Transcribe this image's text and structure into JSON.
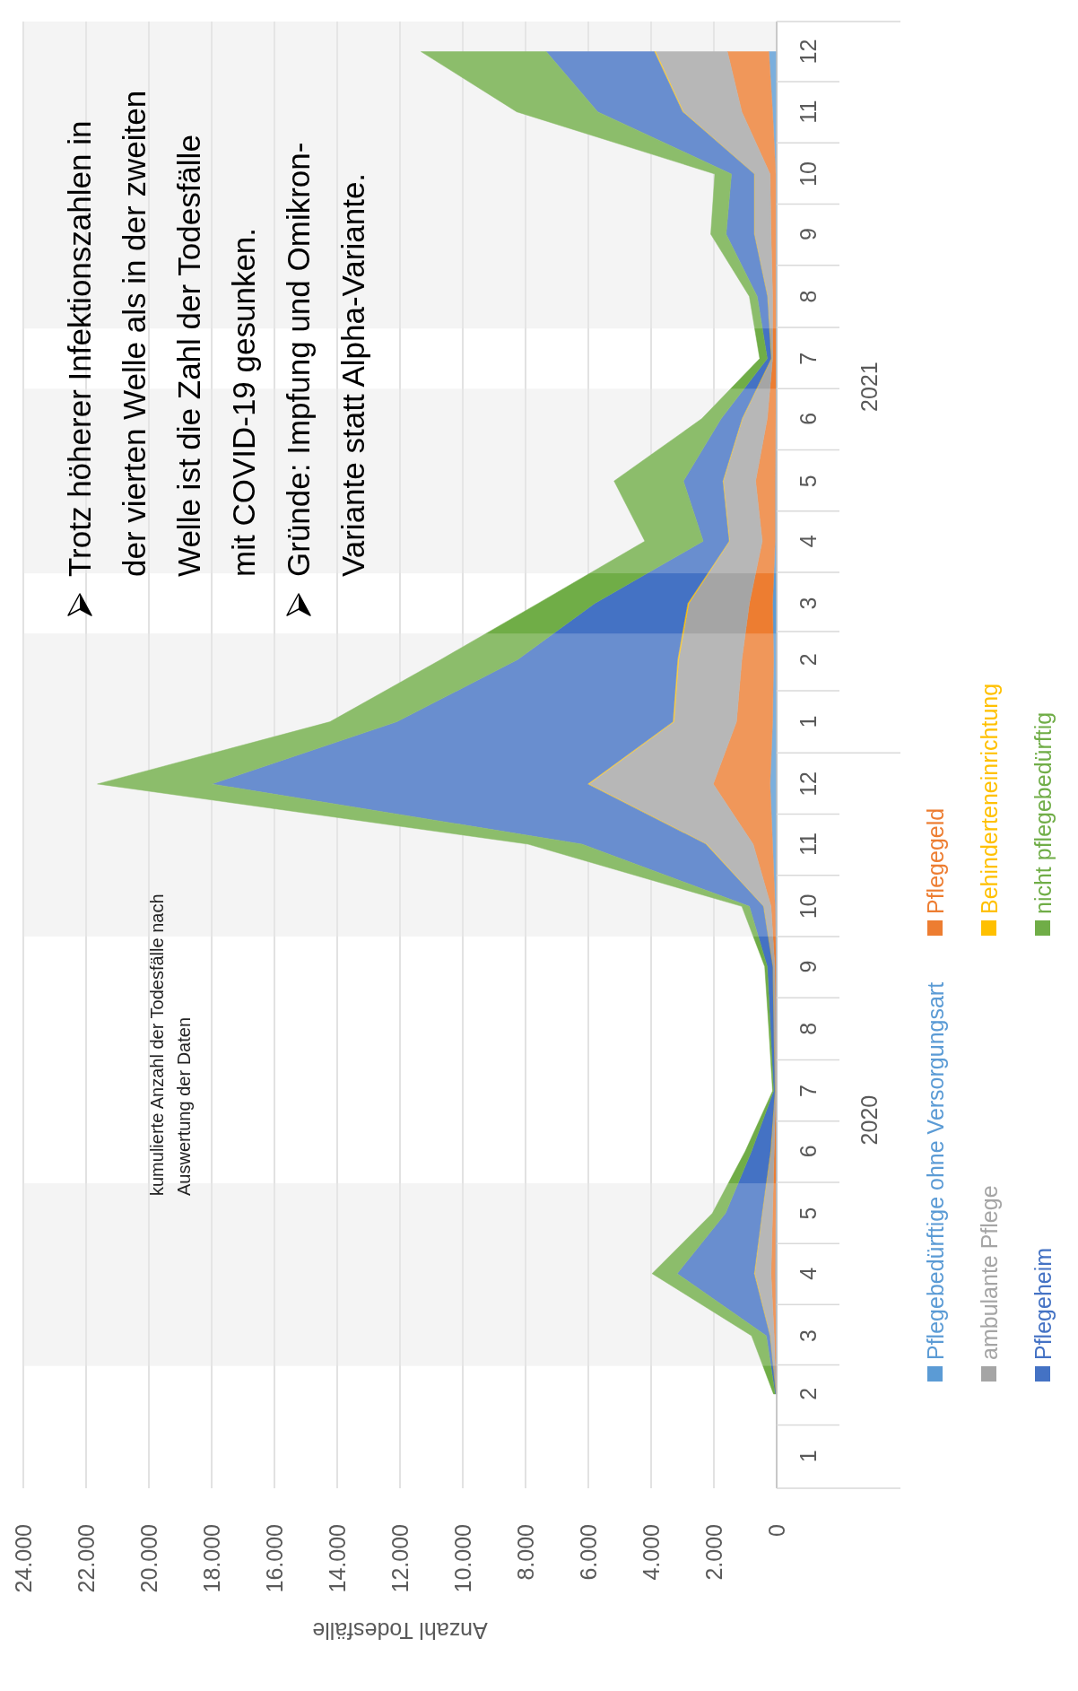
{
  "chart_data": {
    "type": "area",
    "stacked": true,
    "orientation": "horizontal",
    "xlabel": "Anzahl Todesfälle",
    "x": [
      "2020-02",
      "2020-03",
      "2020-04",
      "2020-05",
      "2020-06",
      "2020-07",
      "2020-08",
      "2020-09",
      "2020-10",
      "2020-11",
      "2020-12",
      "2021-01",
      "2021-02",
      "2021-03",
      "2021-04",
      "2021-05",
      "2021-06",
      "2021-07",
      "2021-08",
      "2021-09",
      "2021-10",
      "2021-11",
      "2021-12"
    ],
    "ylim": [
      "2019-12-16",
      "2021-12-16"
    ],
    "yticks": [
      {
        "value": "2020-01",
        "label": "1"
      },
      {
        "value": "2020-02",
        "label": "2"
      },
      {
        "value": "2020-03",
        "label": "3"
      },
      {
        "value": "2020-04",
        "label": "4"
      },
      {
        "value": "2020-05",
        "label": "5"
      },
      {
        "value": "2020-06",
        "label": "6"
      },
      {
        "value": "2020-07",
        "label": "7"
      },
      {
        "value": "2020-08",
        "label": "8"
      },
      {
        "value": "2020-09",
        "label": "9"
      },
      {
        "value": "2020-10",
        "label": "10"
      },
      {
        "value": "2020-11",
        "label": "11"
      },
      {
        "value": "2020-12",
        "label": "12"
      },
      {
        "value": "2021-01",
        "label": "1"
      },
      {
        "value": "2021-02",
        "label": "2"
      },
      {
        "value": "2021-03",
        "label": "3"
      },
      {
        "value": "2021-04",
        "label": "4"
      },
      {
        "value": "2021-05",
        "label": "5"
      },
      {
        "value": "2021-06",
        "label": "6"
      },
      {
        "value": "2021-07",
        "label": "7"
      },
      {
        "value": "2021-08",
        "label": "8"
      },
      {
        "value": "2021-09",
        "label": "9"
      },
      {
        "value": "2021-10",
        "label": "10"
      },
      {
        "value": "2021-11",
        "label": "11"
      },
      {
        "value": "2021-12",
        "label": "12"
      }
    ],
    "xlim": [
      24000,
      0
    ],
    "xticks": [
      {
        "value": 0,
        "label": "0"
      },
      {
        "value": 2000,
        "label": "2.000"
      },
      {
        "value": 4000,
        "label": "4.000"
      },
      {
        "value": 6000,
        "label": "6.000"
      },
      {
        "value": 8000,
        "label": "8.000"
      },
      {
        "value": 10000,
        "label": "10.000"
      },
      {
        "value": 12000,
        "label": "12.000"
      },
      {
        "value": 14000,
        "label": "14.000"
      },
      {
        "value": 16000,
        "label": "16.000"
      },
      {
        "value": 18000,
        "label": "18.000"
      },
      {
        "value": 20000,
        "label": "20.000"
      },
      {
        "value": 22000,
        "label": "22.000"
      },
      {
        "value": 24000,
        "label": "24.000"
      }
    ],
    "grid": "x",
    "legend": "right",
    "series": [
      {
        "name": "Pflegebedürftige ohne Versorgungsart",
        "color": "#5b9bd5",
        "values": [
          10,
          20,
          50,
          30,
          20,
          10,
          20,
          20,
          50,
          130,
          210,
          130,
          100,
          130,
          50,
          50,
          30,
          20,
          30,
          30,
          30,
          130,
          250
        ]
      },
      {
        "name": "Pflegegeld",
        "color": "#ed7d31",
        "values": [
          10,
          60,
          130,
          100,
          60,
          20,
          20,
          40,
          130,
          620,
          1810,
          1150,
          1010,
          740,
          410,
          620,
          270,
          110,
          100,
          150,
          180,
          980,
          1320
        ]
      },
      {
        "name": "ambulante Pflege",
        "color": "#a5a5a5",
        "values": [
          10,
          130,
          520,
          330,
          110,
          30,
          60,
          70,
          240,
          1480,
          3960,
          1990,
          2010,
          1930,
          1040,
          1030,
          790,
          40,
          160,
          530,
          500,
          1860,
          2290
        ]
      },
      {
        "name": "Behinderteneinrichtung",
        "color": "#ffc000",
        "values": [
          0,
          10,
          20,
          10,
          10,
          0,
          0,
          0,
          10,
          30,
          50,
          40,
          40,
          40,
          20,
          20,
          20,
          10,
          10,
          10,
          10,
          30,
          40
        ]
      },
      {
        "name": "Pflegeheim",
        "color": "#4472c4",
        "values": [
          20,
          110,
          2450,
          1160,
          600,
          40,
          100,
          170,
          440,
          3940,
          11970,
          8790,
          5090,
          2960,
          820,
          1250,
          660,
          120,
          320,
          890,
          720,
          2700,
          3440
        ]
      },
      {
        "name": "nicht pflegebedürftig",
        "color": "#70ad47",
        "values": [
          50,
          470,
          800,
          420,
          200,
          30,
          50,
          80,
          240,
          1720,
          3640,
          2130,
          2450,
          1800,
          1860,
          2210,
          620,
          240,
          250,
          490,
          530,
          2580,
          3990
        ]
      }
    ],
    "bands": [
      {
        "axis": "y",
        "from": "2020-02-15",
        "to": "2020-05-16",
        "color": "#f2f2f2"
      },
      {
        "axis": "y",
        "from": "2020-09-16",
        "to": "2021-02-14",
        "color": "#f2f2f2"
      },
      {
        "axis": "y",
        "from": "2021-03-16",
        "to": "2021-06-16",
        "color": "#f2f2f2"
      },
      {
        "axis": "y",
        "from": "2021-07-16",
        "to": "2021-12-16",
        "color": "#f2f2f2"
      }
    ],
    "annotations": [
      "kumulierte Anzahl der Todesfälle nach Auswertung der Daten",
      "Trotz höherer Infektionszahlen in der vierten Welle als in der zweiten Welle ist die Zahl der Todesfälle mit COVID-19 gesunken.",
      "Gründe: Impfung und Omikron-Variante statt Alpha-Variante.",
      "2020",
      "2021"
    ]
  }
}
